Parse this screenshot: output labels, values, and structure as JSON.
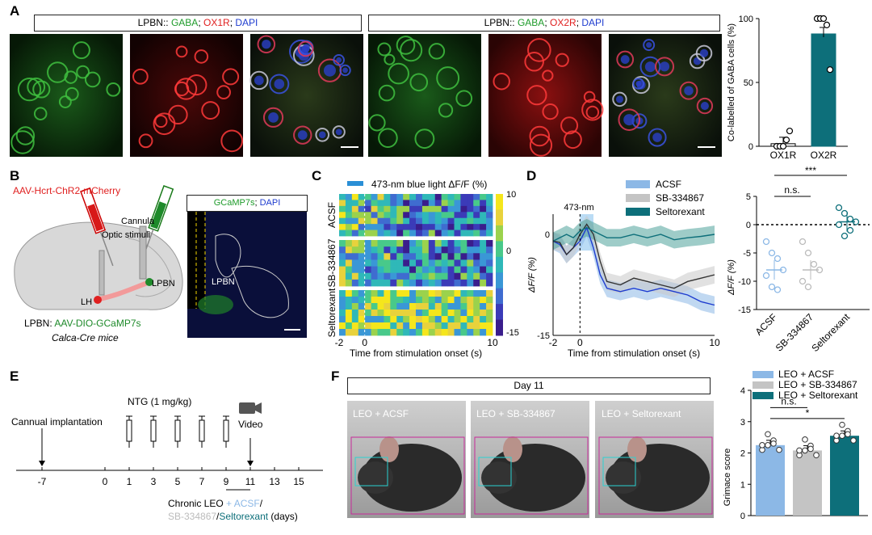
{
  "panels": {
    "a": "A",
    "b": "B",
    "c": "C",
    "d": "D",
    "e": "E",
    "f": "F"
  },
  "colors": {
    "gaba": "#1e9b2a",
    "ox1r": "#e01e1e",
    "dapi": "#1e3ccf",
    "acsf": "#8cb8e6",
    "sb": "#c4c4c4",
    "selt": "#0d6f7a",
    "red": "#e02020",
    "green": "#2a8a2a",
    "blue": "#1e3ccf"
  },
  "a": {
    "header1": {
      "prefix": "LPBN:: ",
      "gaba": "GABA",
      "sep1": "; ",
      "ox": "OX1R",
      "sep2": "; ",
      "dapi": "DAPI"
    },
    "header2": {
      "prefix": "LPBN:: ",
      "gaba": "GABA",
      "sep1": "; ",
      "ox": "OX2R",
      "sep2": "; ",
      "dapi": "DAPI"
    },
    "chart_data": {
      "type": "bar",
      "ylabel": "Co-labelled of GABA cells (%)",
      "categories": [
        "OX1R",
        "OX2R"
      ],
      "values": [
        2,
        88
      ],
      "points": [
        [
          0,
          0,
          0,
          5,
          12
        ],
        [
          100,
          100,
          100,
          95,
          60
        ]
      ],
      "ylim": [
        0,
        100
      ],
      "yticks": [
        "0",
        "50",
        "100"
      ]
    }
  },
  "b": {
    "virus1": "AAV-Hcrt-ChR2-mCherry",
    "cannula": "Cannula",
    "optic": "Optic stimuli",
    "lpbn": "LPBN",
    "lh": "LH",
    "virus2_prefix": "LPBN: ",
    "virus2": "AAV-DIO-GCaMP7s",
    "mice": "Calca-Cre mice",
    "img_title_g": "GCaMP7s",
    "img_title_sep": "; ",
    "img_title_d": "DAPI",
    "img_region": "LPBN"
  },
  "c": {
    "chart_data": {
      "type": "heatmap",
      "title": "473-nm blue light ΔF/F (%)",
      "xlabel": "Time from stimulation onset (s)",
      "groups": [
        "ACSF",
        "SB-334867",
        "Seltorexant"
      ],
      "xticks": [
        "-2",
        "0",
        "10"
      ],
      "colorbar_ticks": [
        "10",
        "0",
        "-15"
      ],
      "clim": [
        -15,
        10
      ]
    }
  },
  "d": {
    "chart_data": {
      "type": "line",
      "annotation": "473-nm",
      "xlabel": "Time from stimulation onset (s)",
      "ylabel": "ΔF/F (%)",
      "xticks": [
        "-2",
        "0",
        "10"
      ],
      "yticks": [
        "0",
        "-15"
      ],
      "xlim": [
        -2,
        10
      ],
      "ylim": [
        -15,
        3
      ],
      "series": [
        {
          "name": "ACSF",
          "x": [
            -2,
            -1.5,
            -1,
            -0.5,
            0,
            0.5,
            1,
            1.5,
            2,
            3,
            4,
            5,
            6,
            7,
            8,
            9,
            10
          ],
          "values": [
            -1,
            -1.5,
            -3,
            -2,
            -1,
            1,
            -2,
            -6,
            -8,
            -8.5,
            -8,
            -8.5,
            -8,
            -8.5,
            -9,
            -10,
            -10.5
          ]
        },
        {
          "name": "SB-334867",
          "x": [
            -2,
            -1.5,
            -1,
            -0.5,
            0,
            0.5,
            1,
            1.5,
            2,
            3,
            4,
            5,
            6,
            7,
            8,
            9,
            10
          ],
          "values": [
            -1,
            -1.2,
            -3,
            -2,
            0,
            1.5,
            0,
            -4,
            -7,
            -7.5,
            -6.5,
            -7,
            -7.5,
            -8,
            -7,
            -6.5,
            -6
          ]
        },
        {
          "name": "Seltorexant",
          "x": [
            -2,
            -1.5,
            -1,
            -0.5,
            0,
            0.5,
            1,
            1.5,
            2,
            3,
            4,
            5,
            6,
            7,
            8,
            9,
            10
          ],
          "values": [
            -1,
            -0.5,
            0,
            -0.5,
            0.5,
            1,
            0.5,
            0,
            -0.5,
            -0.5,
            0,
            -0.5,
            0,
            -0.8,
            -0.5,
            -0.3,
            0
          ]
        }
      ],
      "scatter": {
        "ylabel": "ΔF/F (%)",
        "categories": [
          "ACSF",
          "SB-334867",
          "Seltorexant"
        ],
        "values": [
          -8,
          -8,
          0.5
        ],
        "ylim": [
          -15,
          5
        ],
        "yticks": [
          "5",
          "0",
          "-5",
          "-10",
          "-15"
        ],
        "sig_top": "***",
        "sig_ns": "n.s."
      }
    }
  },
  "e": {
    "implant": "Cannual implantation",
    "ntg": "NTG (1 mg/kg)",
    "video": "Video",
    "axis": [
      "-7",
      "0",
      "1",
      "3",
      "5",
      "7",
      "9",
      "11",
      "13",
      "15"
    ],
    "chronic": "Chronic LEO",
    "plus_acsf": " + ACSF",
    "slash": "/",
    "sb": "SB-334867",
    "slash2": "/",
    "selt": "Seltorexant",
    "days": " (days)"
  },
  "f": {
    "day": "Day 11",
    "photos": [
      "LEO + ACSF",
      "LEO + SB-334867",
      "LEO + Seltorexant"
    ],
    "chart_data": {
      "type": "bar",
      "ylabel": "Grimace score",
      "categories": [
        "LEO + ACSF",
        "LEO + SB-334867",
        "LEO + Seltorexant"
      ],
      "values": [
        2.25,
        2.08,
        2.55
      ],
      "ylim": [
        0,
        4
      ],
      "yticks": [
        "0",
        "1",
        "2",
        "3",
        "4"
      ],
      "sig_ns": "n.s.",
      "sig_star": "*"
    }
  }
}
